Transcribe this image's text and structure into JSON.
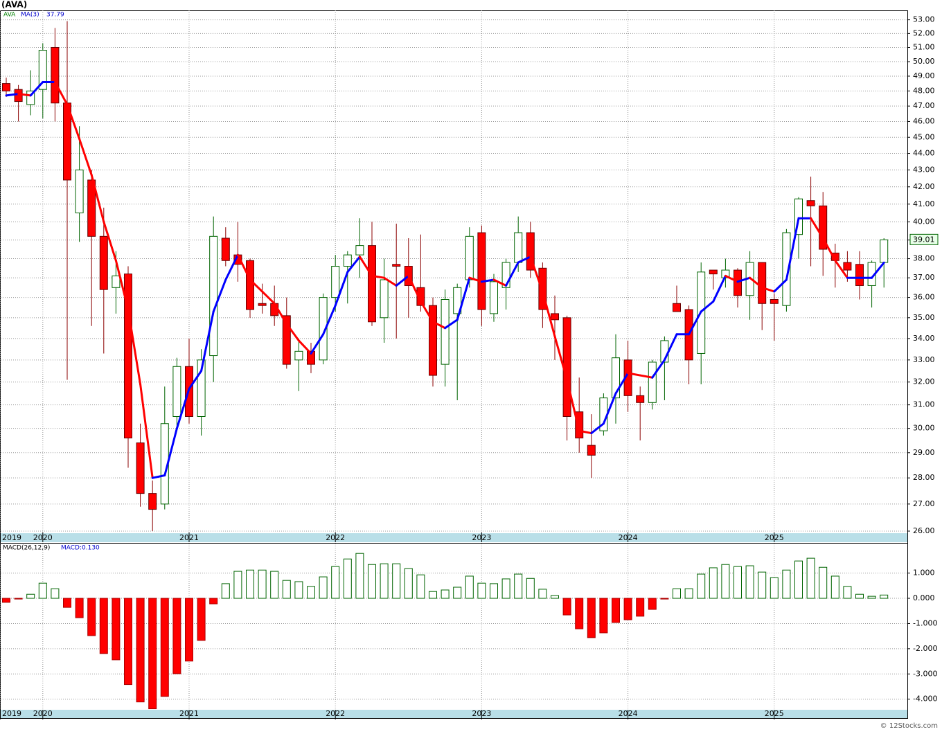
{
  "chart_data": [
    {
      "type": "candlestick",
      "title": "(AVA)",
      "symbol": "AVA",
      "log_scale": true,
      "grid": true,
      "up_color": "#006400",
      "down_color": "#ff0000",
      "xticks": [
        {
          "value": -0.5,
          "label": "2019"
        },
        {
          "value": 3,
          "label": "2020"
        },
        {
          "value": 15,
          "label": "2021"
        },
        {
          "value": 27,
          "label": "2022"
        },
        {
          "value": 39,
          "label": "2023"
        },
        {
          "value": 51,
          "label": "2024"
        },
        {
          "value": 63,
          "label": "2025"
        }
      ],
      "ylim": [
        25.95,
        53.7
      ],
      "yticks": [
        {
          "value": 26,
          "label": "26.00"
        },
        {
          "value": 27,
          "label": "27.00"
        },
        {
          "value": 28,
          "label": "28.00"
        },
        {
          "value": 29,
          "label": "29.00"
        },
        {
          "value": 30,
          "label": "30.00"
        },
        {
          "value": 31,
          "label": "31.00"
        },
        {
          "value": 32,
          "label": "32.00"
        },
        {
          "value": 33,
          "label": "33.00"
        },
        {
          "value": 34,
          "label": "34.00"
        },
        {
          "value": 35,
          "label": "35.00"
        },
        {
          "value": 36,
          "label": "36.00"
        },
        {
          "value": 37,
          "label": "37.00"
        },
        {
          "value": 38,
          "label": "38.00"
        },
        {
          "value": 39,
          "label": "39.00"
        },
        {
          "value": 40,
          "label": "40.00"
        },
        {
          "value": 41,
          "label": "41.00"
        },
        {
          "value": 42,
          "label": "42.00"
        },
        {
          "value": 43,
          "label": "43.00"
        },
        {
          "value": 44,
          "label": "44.00"
        },
        {
          "value": 45,
          "label": "45.00"
        },
        {
          "value": 46,
          "label": "46.00"
        },
        {
          "value": 47,
          "label": "47.00"
        },
        {
          "value": 48,
          "label": "48.00"
        },
        {
          "value": 49,
          "label": "49.00"
        },
        {
          "value": 50,
          "label": "50.00"
        },
        {
          "value": 51,
          "label": "51.00"
        },
        {
          "value": 52,
          "label": "52.00"
        },
        {
          "value": 53,
          "label": "53.00"
        }
      ],
      "open": [
        48.5,
        48.1,
        47.1,
        48.1,
        51.0,
        47.2,
        40.5,
        42.4,
        39.2,
        36.5,
        37.2,
        29.4,
        27.4,
        27.0,
        30.5,
        32.7,
        30.5,
        33.2,
        39.1,
        38.2,
        37.9,
        35.7,
        35.7,
        35.1,
        33.0,
        33.4,
        33.0,
        36.0,
        37.6,
        38.2,
        38.7,
        35.0,
        37.7,
        37.6,
        36.5,
        35.6,
        32.8,
        35.2,
        36.9,
        39.4,
        35.2,
        36.5,
        37.8,
        39.4,
        37.5,
        35.2,
        35.0,
        30.7,
        29.3,
        29.9,
        31.3,
        33.0,
        31.4,
        31.1,
        32.9,
        35.7,
        35.4,
        33.3,
        37.4,
        37.0,
        37.4,
        36.1,
        37.8,
        35.9,
        35.6,
        39.3,
        41.2,
        40.9,
        38.3,
        37.8,
        37.7,
        36.6,
        37.8
      ],
      "high": [
        48.9,
        48.4,
        49.4,
        51.3,
        52.4,
        52.9,
        45.7,
        43.0,
        40.8,
        38.4,
        37.6,
        30.2,
        27.9,
        31.8,
        33.1,
        34.0,
        33.5,
        40.3,
        39.7,
        40.0,
        38.0,
        36.7,
        36.6,
        36.0,
        34.0,
        33.8,
        36.2,
        38.2,
        38.4,
        40.2,
        40.0,
        38.0,
        39.9,
        39.1,
        39.3,
        36.0,
        36.4,
        36.7,
        39.7,
        39.8,
        37.2,
        38.0,
        40.3,
        40.0,
        37.8,
        36.1,
        35.1,
        32.2,
        30.6,
        31.5,
        34.2,
        33.9,
        31.8,
        33.0,
        34.1,
        36.6,
        35.6,
        37.8,
        37.4,
        38.0,
        37.5,
        38.4,
        37.8,
        36.2,
        39.6,
        41.4,
        42.6,
        41.7,
        38.8,
        38.4,
        38.4,
        37.9,
        39.1
      ],
      "low": [
        47.6,
        46.0,
        46.4,
        46.2,
        46.0,
        32.1,
        38.9,
        34.6,
        33.3,
        35.2,
        28.4,
        26.9,
        26.0,
        26.8,
        30.0,
        30.2,
        29.7,
        32.0,
        37.6,
        36.8,
        35.0,
        35.2,
        34.6,
        32.6,
        31.6,
        32.4,
        32.8,
        35.3,
        35.7,
        37.0,
        34.6,
        33.8,
        34.0,
        35.0,
        35.3,
        31.8,
        31.8,
        31.2,
        36.5,
        34.6,
        34.8,
        35.4,
        37.3,
        37.0,
        34.5,
        33.0,
        29.5,
        29.0,
        28.0,
        29.7,
        30.2,
        30.7,
        29.5,
        30.8,
        31.2,
        35.3,
        31.9,
        31.9,
        36.4,
        36.5,
        35.5,
        34.9,
        34.4,
        33.9,
        35.3,
        38.0,
        37.6,
        37.1,
        36.5,
        36.8,
        35.9,
        35.5,
        36.5
      ],
      "close": [
        48.0,
        47.3,
        48.0,
        50.8,
        47.2,
        42.4,
        43.0,
        39.2,
        36.4,
        37.1,
        29.6,
        27.4,
        26.8,
        30.2,
        32.7,
        30.5,
        33.0,
        39.2,
        37.9,
        37.7,
        35.4,
        35.6,
        35.1,
        32.8,
        33.4,
        32.8,
        36.0,
        37.6,
        38.2,
        38.7,
        34.8,
        36.9,
        37.6,
        36.6,
        35.6,
        32.3,
        35.9,
        36.5,
        39.2,
        35.4,
        36.8,
        37.8,
        39.4,
        37.4,
        35.4,
        34.9,
        30.5,
        29.6,
        28.9,
        31.3,
        33.1,
        31.4,
        31.1,
        32.9,
        33.9,
        35.3,
        33.0,
        37.3,
        37.2,
        37.4,
        36.1,
        37.8,
        35.7,
        35.7,
        39.4,
        41.3,
        40.9,
        38.5,
        37.9,
        37.4,
        36.6,
        37.8,
        39.01
      ],
      "series": [
        {
          "name": "MA(3)",
          "rise_color": "#0000ff",
          "fall_color": "#ff0000",
          "values": [
            47.7,
            47.8,
            47.7,
            48.6,
            48.6,
            47.1,
            44.9,
            42.7,
            40.0,
            37.9,
            35.4,
            31.9,
            28.0,
            28.1,
            30.0,
            31.7,
            32.5,
            35.3,
            36.9,
            38.2,
            36.9,
            36.3,
            35.7,
            34.7,
            33.9,
            33.3,
            34.2,
            35.6,
            37.3,
            38.1,
            37.1,
            37.0,
            36.6,
            37.1,
            35.8,
            34.8,
            34.5,
            34.9,
            37.0,
            36.8,
            36.9,
            36.6,
            37.8,
            38.1,
            36.3,
            34.1,
            32.1,
            29.9,
            29.8,
            30.2,
            31.5,
            32.4,
            32.3,
            32.2,
            33.0,
            34.2,
            34.2,
            35.3,
            35.8,
            37.1,
            36.8,
            37.0,
            36.5,
            36.3,
            36.9,
            40.2,
            40.2,
            39.1,
            37.9,
            37.0,
            37.0,
            37.0,
            37.79
          ]
        }
      ]
    },
    {
      "type": "bar",
      "series_name": "MACD(26,12,9)",
      "current_label": "MACD:0.130",
      "grid": true,
      "up_color": "#006400",
      "down_color": "#ff0000",
      "xticks": [
        {
          "value": -0.5,
          "label": "2019"
        },
        {
          "value": 3,
          "label": "2020"
        },
        {
          "value": 15,
          "label": "2021"
        },
        {
          "value": 27,
          "label": "2022"
        },
        {
          "value": 39,
          "label": "2023"
        },
        {
          "value": 51,
          "label": "2024"
        },
        {
          "value": 63,
          "label": "2025"
        }
      ],
      "ylim": [
        -4.42,
        2.17
      ],
      "yticks": [
        {
          "value": 1,
          "label": "1.000"
        },
        {
          "value": 0,
          "label": "0.000"
        },
        {
          "value": -1,
          "label": "-1.000"
        },
        {
          "value": -2,
          "label": "-2.000"
        },
        {
          "value": -3,
          "label": "-3.000"
        },
        {
          "value": -4,
          "label": "-4.000"
        }
      ],
      "values": [
        -0.16,
        -0.03,
        0.16,
        0.6,
        0.38,
        -0.36,
        -0.77,
        -1.48,
        -2.19,
        -2.44,
        -3.42,
        -4.11,
        -4.38,
        -3.89,
        -2.99,
        -2.49,
        -1.67,
        -0.22,
        0.58,
        1.07,
        1.12,
        1.12,
        1.07,
        0.71,
        0.66,
        0.47,
        0.85,
        1.26,
        1.56,
        1.78,
        1.34,
        1.37,
        1.37,
        1.18,
        0.93,
        0.27,
        0.33,
        0.44,
        0.88,
        0.6,
        0.58,
        0.77,
        0.96,
        0.79,
        0.36,
        0.11,
        -0.66,
        -1.21,
        -1.56,
        -1.37,
        -0.96,
        -0.85,
        -0.71,
        -0.44,
        -0.03,
        0.38,
        0.38,
        0.96,
        1.21,
        1.34,
        1.26,
        1.29,
        1.04,
        0.82,
        1.12,
        1.48,
        1.59,
        1.23,
        0.88,
        0.47,
        0.16,
        0.08,
        0.13
      ]
    }
  ],
  "footer": "© 12Stocks.com"
}
